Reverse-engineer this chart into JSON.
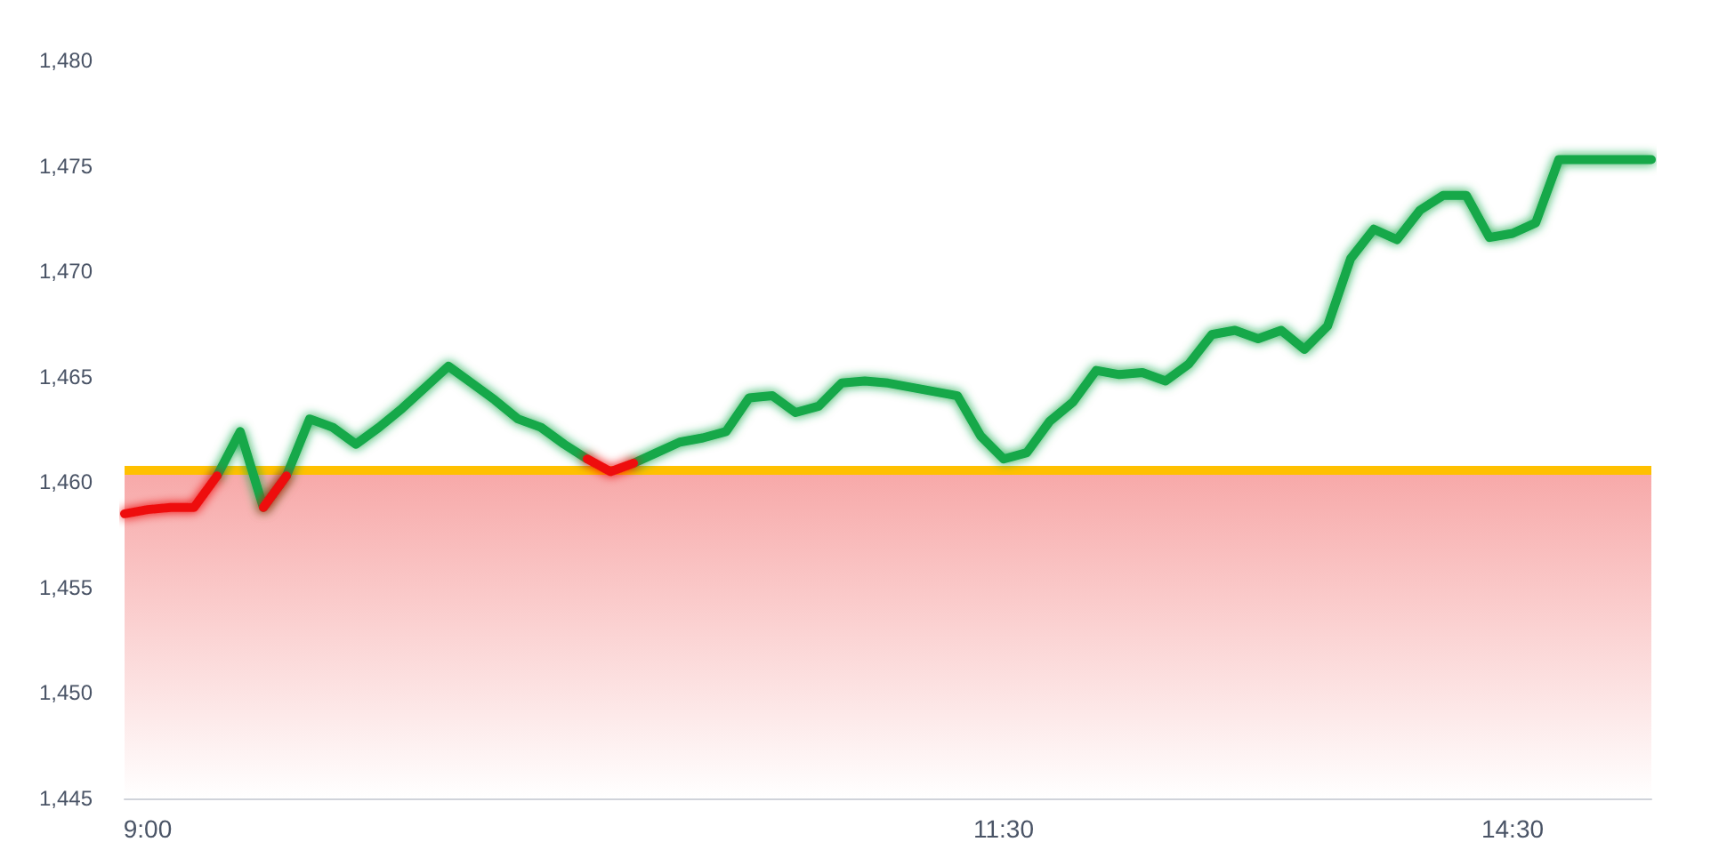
{
  "chart_data": {
    "type": "line",
    "categories": [
      null,
      "9:00",
      null,
      null,
      null,
      null,
      null,
      null,
      null,
      null,
      null,
      null,
      null,
      null,
      null,
      null,
      null,
      null,
      null,
      null,
      null,
      null,
      null,
      null,
      null,
      null,
      null,
      null,
      null,
      null,
      null,
      null,
      null,
      null,
      null,
      null,
      null,
      null,
      "11:30",
      null,
      null,
      null,
      null,
      null,
      null,
      null,
      null,
      null,
      null,
      null,
      null,
      null,
      null,
      null,
      null,
      null,
      null,
      null,
      null,
      null,
      "14:30",
      null,
      null,
      null,
      null,
      null,
      null
    ],
    "series": [
      {
        "color": "#12a84a",
        "values": [
          null,
          null,
          null,
          null,
          1460.3,
          1462.4,
          1458.8,
          1460.3,
          1463.0,
          1462.6,
          1461.8,
          1462.6,
          1463.5,
          1464.5,
          1465.5,
          1464.7,
          1463.9,
          1463.0,
          1462.6,
          1461.8,
          1461.1,
          null,
          1460.9,
          1461.4,
          1461.9,
          1462.1,
          1462.4,
          1464.0,
          1464.1,
          1463.3,
          1463.6,
          1464.7,
          1464.8,
          1464.7,
          1464.5,
          1464.3,
          1464.1,
          1462.2,
          1461.1,
          1461.4,
          1462.9,
          1463.8,
          1465.3,
          1465.1,
          1465.2,
          1464.8,
          1465.6,
          1467.0,
          1467.2,
          1466.8,
          1467.2,
          1466.3,
          1467.4,
          1470.6,
          1472.0,
          1471.5,
          1472.9,
          1473.6,
          1473.6,
          1471.6,
          1471.8,
          1472.3,
          1475.3,
          1475.3,
          1475.3,
          1475.3,
          1475.3
        ]
      },
      {
        "color": "#ee1111",
        "values": [
          1458.5,
          1458.7,
          1458.8,
          1458.8,
          1460.3,
          null,
          1458.8,
          1460.3,
          null,
          null,
          null,
          null,
          null,
          null,
          null,
          null,
          null,
          null,
          null,
          null,
          1461.1,
          1460.5,
          1460.9,
          null,
          null,
          null,
          null,
          null,
          null,
          null,
          null,
          null,
          null,
          null,
          null,
          null,
          null,
          null,
          null,
          null,
          null,
          null,
          null,
          null,
          null,
          null,
          null,
          null,
          null,
          null,
          null,
          null,
          null,
          null,
          null,
          null,
          null,
          null,
          null,
          null,
          null,
          null,
          null,
          null,
          null,
          null,
          null
        ]
      }
    ],
    "ylim": [
      1445,
      1480
    ],
    "yticks": [
      {
        "value": 1445,
        "label": "1,445"
      },
      {
        "value": 1450,
        "label": "1,450"
      },
      {
        "value": 1455,
        "label": "1,455"
      },
      {
        "value": 1460,
        "label": "1,460"
      },
      {
        "value": 1465,
        "label": "1,465"
      },
      {
        "value": 1470,
        "label": "1,470"
      },
      {
        "value": 1475,
        "label": "1,475"
      },
      {
        "value": 1480,
        "label": "1,480"
      }
    ],
    "ref_lines": [
      {
        "axis": "y",
        "value": 1460.6,
        "color": "#ffc000"
      }
    ],
    "bands": [
      {
        "axis": "y",
        "from": 1445,
        "to": 1460.6,
        "color": "#f7a8a8"
      }
    ],
    "grid": false,
    "marker": "none",
    "line_style": "solid"
  }
}
